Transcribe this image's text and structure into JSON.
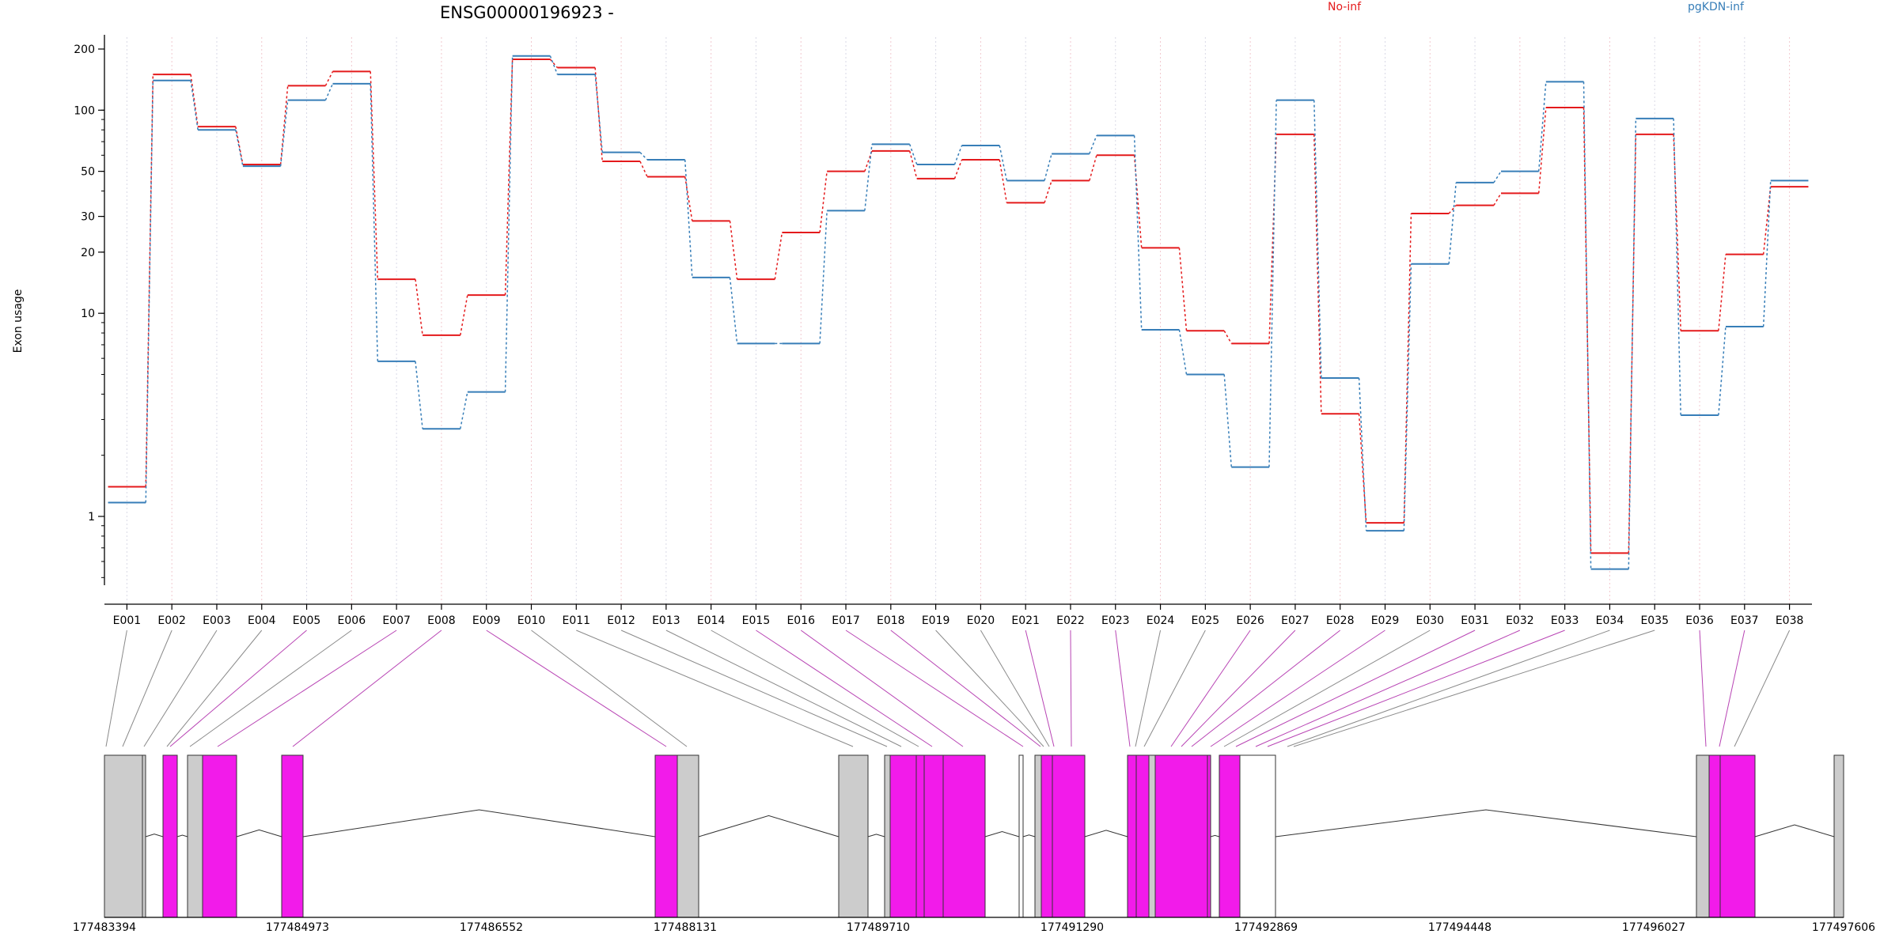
{
  "chart_data": {
    "type": "line",
    "title": "ENSG00000196923 -",
    "ylabel": "Exon usage",
    "xlabel": "",
    "y_scale": "log",
    "y_ticks": [
      1,
      10,
      20,
      30,
      50,
      100,
      200
    ],
    "categories": [
      "E001",
      "E002",
      "E003",
      "E004",
      "E005",
      "E006",
      "E007",
      "E008",
      "E009",
      "E010",
      "E011",
      "E012",
      "E013",
      "E014",
      "E015",
      "E016",
      "E017",
      "E018",
      "E019",
      "E020",
      "E021",
      "E022",
      "E023",
      "E024",
      "E025",
      "E026",
      "E027",
      "E028",
      "E029",
      "E030",
      "E031",
      "E032",
      "E033",
      "E034",
      "E035",
      "E036",
      "E037",
      "E038"
    ],
    "series": [
      {
        "name": "No-inf",
        "color": "#e41a1c",
        "values": [
          1.4,
          150,
          83,
          54,
          132,
          155,
          14.7,
          7.8,
          12.3,
          178,
          162,
          56,
          47,
          28.5,
          14.7,
          25,
          50,
          63,
          46,
          57,
          35,
          45,
          60,
          21,
          8.2,
          7.1,
          76,
          3.2,
          0.93,
          31,
          34,
          39,
          103,
          0.66,
          76,
          8.2,
          19.5,
          42
        ]
      },
      {
        "name": "pgKDN-inf",
        "color": "#377eb8",
        "values": [
          1.17,
          140,
          80,
          53,
          112,
          135,
          5.8,
          2.7,
          4.1,
          185,
          150,
          62,
          57,
          15,
          7.1,
          7.1,
          32,
          68,
          54,
          67,
          45,
          61,
          75,
          8.3,
          5.0,
          1.75,
          112,
          4.8,
          0.85,
          17.5,
          44,
          50,
          138,
          0.55,
          91,
          3.15,
          8.6,
          45
        ]
      }
    ],
    "genomic_axis": {
      "ticks": [
        "177483394",
        "177484973",
        "177486552",
        "177488131",
        "177489710",
        "177491290",
        "177492869",
        "177494448",
        "177496027",
        "177497606"
      ]
    },
    "grid": "vertical-dotted",
    "legend_placement": "top-right"
  }
}
